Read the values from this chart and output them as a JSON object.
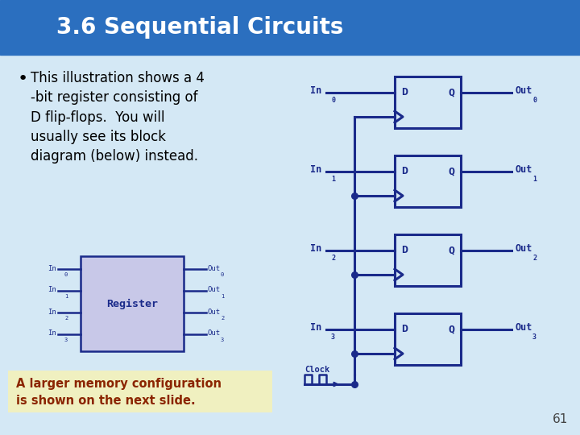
{
  "title": "3.6 Sequential Circuits",
  "title_bg": "#2B6FBF",
  "title_color": "#FFFFFF",
  "slide_bg": "#D4E8F5",
  "bullet_text": "This illustration shows a 4\n-bit register consisting of\nD flip-flops.  You will\nusually see its block\ndiagram (below) instead.",
  "bullet_color": "#000000",
  "dff_color": "#1A2A8A",
  "dff_box_bg": "#D4E8F5",
  "label_color": "#1A2A8A",
  "reg_box_bg": "#C8C8E8",
  "reg_box_border": "#1A2A8A",
  "reg_label": "Register",
  "reg_label_color": "#1A2A8A",
  "note_bg": "#F0F0C0",
  "note_text": "A larger memory configuration\nis shown on the next slide.",
  "note_color": "#8B2500",
  "page_num": "61",
  "sub_indices": [
    "0",
    "1",
    "2",
    "3"
  ]
}
